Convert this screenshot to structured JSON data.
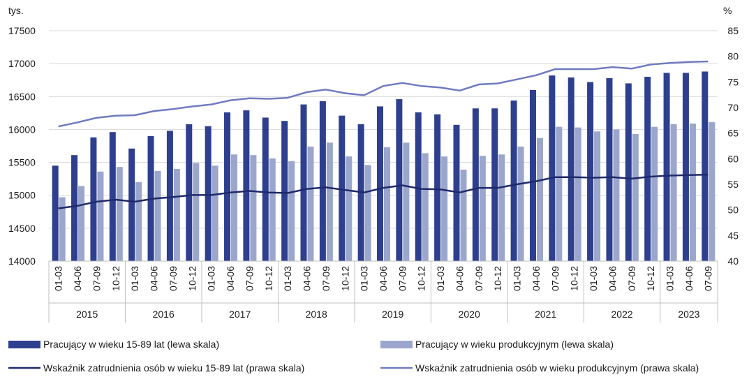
{
  "chart_data": {
    "type": "bar",
    "left_axis_unit": "tys.",
    "right_axis_unit": "%",
    "ylim_left": [
      14000,
      17500
    ],
    "ylim_right": [
      40,
      85
    ],
    "left_ticks": [
      14000,
      14500,
      15000,
      15500,
      16000,
      16500,
      17000,
      17500
    ],
    "right_ticks": [
      40,
      45,
      50,
      55,
      60,
      65,
      70,
      75,
      80,
      85
    ],
    "grid": true,
    "legend_position": "bottom",
    "categories": [
      "01-03",
      "04-06",
      "07-09",
      "10-12",
      "01-03",
      "04-06",
      "07-09",
      "10-12",
      "01-03",
      "04-06",
      "07-09",
      "10-12",
      "01-03",
      "04-06",
      "07-09",
      "10-12",
      "01-03",
      "04-06",
      "07-09",
      "10-12",
      "01-03",
      "04-06",
      "07-09",
      "10-12",
      "01-03",
      "04-06",
      "07-09",
      "10-12",
      "01-03",
      "04-06",
      "07-09",
      "10-12",
      "01-03",
      "04-06",
      "07-09"
    ],
    "years": [
      {
        "label": "2015",
        "count": 4
      },
      {
        "label": "2016",
        "count": 4
      },
      {
        "label": "2017",
        "count": 4
      },
      {
        "label": "2018",
        "count": 4
      },
      {
        "label": "2019",
        "count": 4
      },
      {
        "label": "2020",
        "count": 4
      },
      {
        "label": "2021",
        "count": 4
      },
      {
        "label": "2022",
        "count": 4
      },
      {
        "label": "2023",
        "count": 3
      }
    ],
    "series": [
      {
        "name": "Pracujący w wieku 15-89 lat (lewa skala)",
        "kind": "bar",
        "axis": "left",
        "color": "#2e3f8f",
        "values": [
          15450,
          15610,
          15880,
          15960,
          15710,
          15900,
          15980,
          16080,
          16050,
          16260,
          16290,
          16180,
          16130,
          16380,
          16430,
          16210,
          16080,
          16350,
          16460,
          16260,
          16230,
          16070,
          16320,
          16320,
          16440,
          16600,
          16820,
          16790,
          16720,
          16780,
          16700,
          16800,
          16860,
          16860,
          16880
        ]
      },
      {
        "name": "Pracujący w wieku produkcyjnym (lewa skala)",
        "kind": "bar",
        "axis": "left",
        "color": "#9ba6cc",
        "values": [
          14970,
          15140,
          15360,
          15430,
          15200,
          15370,
          15400,
          15490,
          15450,
          15620,
          15610,
          15560,
          15520,
          15740,
          15800,
          15590,
          15460,
          15730,
          15800,
          15640,
          15590,
          15390,
          15600,
          15620,
          15740,
          15870,
          16040,
          16030,
          15970,
          16000,
          15930,
          16040,
          16080,
          16090,
          16110
        ]
      },
      {
        "name": "Wskaźnik zatrudnienia osób w wieku 15-89 lat (prawa skala)",
        "kind": "line",
        "axis": "right",
        "color": "#1f2a6b",
        "values": [
          50.3,
          50.8,
          51.6,
          52.0,
          51.6,
          52.2,
          52.5,
          52.9,
          52.9,
          53.4,
          53.7,
          53.4,
          53.3,
          54.1,
          54.4,
          53.9,
          53.4,
          54.3,
          54.8,
          54.1,
          54.0,
          53.4,
          54.3,
          54.3,
          55.0,
          55.6,
          56.4,
          56.4,
          56.3,
          56.4,
          56.1,
          56.5,
          56.7,
          56.8,
          56.9
        ]
      },
      {
        "name": "Wskaźnik zatrudnienia osób w wieku produkcyjnym (prawa skala)",
        "kind": "line",
        "axis": "right",
        "color": "#6f7bbf",
        "values": [
          66.3,
          67.1,
          68.0,
          68.4,
          68.5,
          69.3,
          69.7,
          70.2,
          70.6,
          71.4,
          71.8,
          71.7,
          71.9,
          73.0,
          73.5,
          72.8,
          72.4,
          74.2,
          74.8,
          74.2,
          73.9,
          73.3,
          74.5,
          74.7,
          75.5,
          76.3,
          77.5,
          77.5,
          77.5,
          77.9,
          77.6,
          78.4,
          78.7,
          78.9,
          79.0
        ]
      }
    ]
  }
}
